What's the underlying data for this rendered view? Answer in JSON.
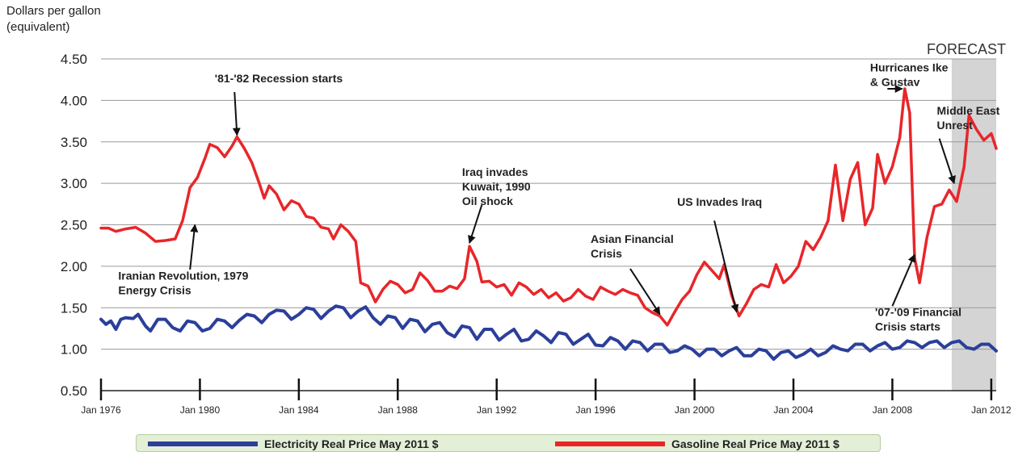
{
  "chart_data": {
    "type": "line",
    "ylabel": "Dollars per gallon\n(equivalent)",
    "ylim": [
      0.5,
      4.5
    ],
    "yticks": [
      "0.50",
      "1.00",
      "1.50",
      "2.00",
      "2.50",
      "3.00",
      "3.50",
      "4.00",
      "4.50"
    ],
    "xlim": [
      1976.0,
      2012.2
    ],
    "xticks": [
      "Jan 1976",
      "Jan 1980",
      "Jan 1984",
      "Jan 1988",
      "Jan 1992",
      "Jan 1996",
      "Jan 2000",
      "Jan 2004",
      "Jan 2008",
      "Jan 2012"
    ],
    "grid": "horizontal",
    "forecast": {
      "label": "FORECAST",
      "from": 2010.4,
      "to": 2012.2
    },
    "series": [
      {
        "name": "Electricity Real Price May 2011 $",
        "color": "#2b3f9a",
        "points": [
          [
            1976.0,
            1.36
          ],
          [
            1976.2,
            1.3
          ],
          [
            1976.4,
            1.34
          ],
          [
            1976.6,
            1.24
          ],
          [
            1976.8,
            1.36
          ],
          [
            1977.0,
            1.38
          ],
          [
            1977.3,
            1.37
          ],
          [
            1977.5,
            1.42
          ],
          [
            1977.8,
            1.28
          ],
          [
            1978.0,
            1.22
          ],
          [
            1978.3,
            1.36
          ],
          [
            1978.6,
            1.36
          ],
          [
            1978.9,
            1.26
          ],
          [
            1979.2,
            1.22
          ],
          [
            1979.5,
            1.34
          ],
          [
            1979.8,
            1.32
          ],
          [
            1980.1,
            1.22
          ],
          [
            1980.4,
            1.25
          ],
          [
            1980.7,
            1.36
          ],
          [
            1981.0,
            1.34
          ],
          [
            1981.3,
            1.26
          ],
          [
            1981.6,
            1.35
          ],
          [
            1981.9,
            1.42
          ],
          [
            1982.2,
            1.4
          ],
          [
            1982.5,
            1.32
          ],
          [
            1982.8,
            1.42
          ],
          [
            1983.1,
            1.47
          ],
          [
            1983.4,
            1.46
          ],
          [
            1983.7,
            1.36
          ],
          [
            1984.0,
            1.42
          ],
          [
            1984.3,
            1.5
          ],
          [
            1984.6,
            1.48
          ],
          [
            1984.9,
            1.37
          ],
          [
            1985.2,
            1.46
          ],
          [
            1985.5,
            1.52
          ],
          [
            1985.8,
            1.5
          ],
          [
            1986.1,
            1.38
          ],
          [
            1986.4,
            1.46
          ],
          [
            1986.7,
            1.51
          ],
          [
            1987.0,
            1.38
          ],
          [
            1987.3,
            1.3
          ],
          [
            1987.6,
            1.4
          ],
          [
            1987.9,
            1.38
          ],
          [
            1988.2,
            1.25
          ],
          [
            1988.5,
            1.36
          ],
          [
            1988.8,
            1.34
          ],
          [
            1989.1,
            1.21
          ],
          [
            1989.4,
            1.3
          ],
          [
            1989.7,
            1.32
          ],
          [
            1990.0,
            1.2
          ],
          [
            1990.3,
            1.15
          ],
          [
            1990.6,
            1.28
          ],
          [
            1990.9,
            1.26
          ],
          [
            1991.2,
            1.12
          ],
          [
            1991.5,
            1.24
          ],
          [
            1991.8,
            1.24
          ],
          [
            1992.1,
            1.11
          ],
          [
            1992.4,
            1.18
          ],
          [
            1992.7,
            1.24
          ],
          [
            1993.0,
            1.1
          ],
          [
            1993.3,
            1.12
          ],
          [
            1993.6,
            1.22
          ],
          [
            1993.9,
            1.16
          ],
          [
            1994.2,
            1.08
          ],
          [
            1994.5,
            1.2
          ],
          [
            1994.8,
            1.18
          ],
          [
            1995.1,
            1.06
          ],
          [
            1995.4,
            1.12
          ],
          [
            1995.7,
            1.18
          ],
          [
            1996.0,
            1.05
          ],
          [
            1996.3,
            1.04
          ],
          [
            1996.6,
            1.14
          ],
          [
            1996.9,
            1.1
          ],
          [
            1997.2,
            1.0
          ],
          [
            1997.5,
            1.1
          ],
          [
            1997.8,
            1.08
          ],
          [
            1998.1,
            0.98
          ],
          [
            1998.4,
            1.06
          ],
          [
            1998.7,
            1.06
          ],
          [
            1999.0,
            0.96
          ],
          [
            1999.3,
            0.98
          ],
          [
            1999.6,
            1.04
          ],
          [
            1999.9,
            1.0
          ],
          [
            2000.2,
            0.92
          ],
          [
            2000.5,
            1.0
          ],
          [
            2000.8,
            1.0
          ],
          [
            2001.1,
            0.92
          ],
          [
            2001.4,
            0.98
          ],
          [
            2001.7,
            1.02
          ],
          [
            2002.0,
            0.92
          ],
          [
            2002.3,
            0.92
          ],
          [
            2002.6,
            1.0
          ],
          [
            2002.9,
            0.98
          ],
          [
            2003.2,
            0.88
          ],
          [
            2003.5,
            0.96
          ],
          [
            2003.8,
            0.98
          ],
          [
            2004.1,
            0.9
          ],
          [
            2004.4,
            0.94
          ],
          [
            2004.7,
            1.0
          ],
          [
            2005.0,
            0.92
          ],
          [
            2005.3,
            0.96
          ],
          [
            2005.6,
            1.04
          ],
          [
            2005.9,
            1.0
          ],
          [
            2006.2,
            0.98
          ],
          [
            2006.5,
            1.06
          ],
          [
            2006.8,
            1.06
          ],
          [
            2007.1,
            0.98
          ],
          [
            2007.4,
            1.04
          ],
          [
            2007.7,
            1.08
          ],
          [
            2008.0,
            1.0
          ],
          [
            2008.3,
            1.02
          ],
          [
            2008.6,
            1.1
          ],
          [
            2008.9,
            1.08
          ],
          [
            2009.2,
            1.02
          ],
          [
            2009.5,
            1.08
          ],
          [
            2009.8,
            1.1
          ],
          [
            2010.1,
            1.02
          ],
          [
            2010.4,
            1.08
          ],
          [
            2010.7,
            1.1
          ],
          [
            2011.0,
            1.02
          ],
          [
            2011.3,
            1.0
          ],
          [
            2011.6,
            1.06
          ],
          [
            2011.9,
            1.06
          ],
          [
            2012.2,
            0.98
          ]
        ]
      },
      {
        "name": "Gasoline Real Price May 2011 $",
        "color": "#e8262a",
        "points": [
          [
            1976.0,
            2.46
          ],
          [
            1976.3,
            2.46
          ],
          [
            1976.6,
            2.42
          ],
          [
            1977.0,
            2.45
          ],
          [
            1977.4,
            2.47
          ],
          [
            1977.8,
            2.4
          ],
          [
            1978.2,
            2.3
          ],
          [
            1978.6,
            2.31
          ],
          [
            1979.0,
            2.33
          ],
          [
            1979.3,
            2.55
          ],
          [
            1979.6,
            2.95
          ],
          [
            1979.9,
            3.07
          ],
          [
            1980.2,
            3.3
          ],
          [
            1980.4,
            3.47
          ],
          [
            1980.7,
            3.43
          ],
          [
            1981.0,
            3.32
          ],
          [
            1981.3,
            3.45
          ],
          [
            1981.5,
            3.56
          ],
          [
            1981.8,
            3.42
          ],
          [
            1982.1,
            3.25
          ],
          [
            1982.4,
            3.0
          ],
          [
            1982.6,
            2.82
          ],
          [
            1982.8,
            2.97
          ],
          [
            1983.1,
            2.87
          ],
          [
            1983.4,
            2.68
          ],
          [
            1983.7,
            2.79
          ],
          [
            1984.0,
            2.75
          ],
          [
            1984.3,
            2.6
          ],
          [
            1984.6,
            2.58
          ],
          [
            1984.9,
            2.47
          ],
          [
            1985.2,
            2.45
          ],
          [
            1985.4,
            2.33
          ],
          [
            1985.7,
            2.5
          ],
          [
            1986.0,
            2.42
          ],
          [
            1986.3,
            2.3
          ],
          [
            1986.5,
            1.8
          ],
          [
            1986.8,
            1.76
          ],
          [
            1987.1,
            1.57
          ],
          [
            1987.4,
            1.72
          ],
          [
            1987.7,
            1.82
          ],
          [
            1988.0,
            1.78
          ],
          [
            1988.3,
            1.68
          ],
          [
            1988.6,
            1.72
          ],
          [
            1988.9,
            1.92
          ],
          [
            1989.2,
            1.83
          ],
          [
            1989.5,
            1.7
          ],
          [
            1989.8,
            1.7
          ],
          [
            1990.1,
            1.76
          ],
          [
            1990.4,
            1.73
          ],
          [
            1990.7,
            1.85
          ],
          [
            1990.9,
            2.24
          ],
          [
            1991.2,
            2.06
          ],
          [
            1991.4,
            1.81
          ],
          [
            1991.7,
            1.82
          ],
          [
            1992.0,
            1.75
          ],
          [
            1992.3,
            1.78
          ],
          [
            1992.6,
            1.65
          ],
          [
            1992.9,
            1.8
          ],
          [
            1993.2,
            1.75
          ],
          [
            1993.5,
            1.66
          ],
          [
            1993.8,
            1.72
          ],
          [
            1994.1,
            1.62
          ],
          [
            1994.4,
            1.68
          ],
          [
            1994.7,
            1.58
          ],
          [
            1995.0,
            1.62
          ],
          [
            1995.3,
            1.72
          ],
          [
            1995.6,
            1.64
          ],
          [
            1995.9,
            1.6
          ],
          [
            1996.2,
            1.75
          ],
          [
            1996.5,
            1.7
          ],
          [
            1996.8,
            1.66
          ],
          [
            1997.1,
            1.72
          ],
          [
            1997.4,
            1.68
          ],
          [
            1997.7,
            1.65
          ],
          [
            1998.0,
            1.5
          ],
          [
            1998.3,
            1.44
          ],
          [
            1998.6,
            1.4
          ],
          [
            1998.9,
            1.29
          ],
          [
            1999.2,
            1.45
          ],
          [
            1999.5,
            1.6
          ],
          [
            1999.8,
            1.7
          ],
          [
            2000.1,
            1.9
          ],
          [
            2000.4,
            2.05
          ],
          [
            2000.7,
            1.95
          ],
          [
            2001.0,
            1.85
          ],
          [
            2001.2,
            2.02
          ],
          [
            2001.5,
            1.65
          ],
          [
            2001.8,
            1.4
          ],
          [
            2002.1,
            1.55
          ],
          [
            2002.4,
            1.72
          ],
          [
            2002.7,
            1.78
          ],
          [
            2003.0,
            1.75
          ],
          [
            2003.3,
            2.02
          ],
          [
            2003.6,
            1.8
          ],
          [
            2003.9,
            1.88
          ],
          [
            2004.2,
            2.0
          ],
          [
            2004.5,
            2.3
          ],
          [
            2004.8,
            2.2
          ],
          [
            2005.1,
            2.35
          ],
          [
            2005.4,
            2.55
          ],
          [
            2005.7,
            3.22
          ],
          [
            2006.0,
            2.55
          ],
          [
            2006.3,
            3.05
          ],
          [
            2006.6,
            3.25
          ],
          [
            2006.9,
            2.5
          ],
          [
            2007.2,
            2.7
          ],
          [
            2007.4,
            3.35
          ],
          [
            2007.7,
            3.0
          ],
          [
            2008.0,
            3.2
          ],
          [
            2008.3,
            3.55
          ],
          [
            2008.5,
            4.14
          ],
          [
            2008.7,
            3.85
          ],
          [
            2008.9,
            2.1
          ],
          [
            2009.1,
            1.8
          ],
          [
            2009.4,
            2.35
          ],
          [
            2009.7,
            2.72
          ],
          [
            2010.0,
            2.75
          ],
          [
            2010.3,
            2.92
          ],
          [
            2010.6,
            2.78
          ],
          [
            2010.9,
            3.2
          ],
          [
            2011.1,
            3.82
          ],
          [
            2011.4,
            3.65
          ],
          [
            2011.7,
            3.52
          ],
          [
            2012.0,
            3.6
          ],
          [
            2012.2,
            3.42
          ]
        ]
      }
    ],
    "annotations": [
      {
        "text": "'81-'82 Recession starts",
        "tx": 1980.6,
        "ty": 4.22,
        "ax": 1981.4,
        "ay": 4.1,
        "hx": 1981.5,
        "hy": 3.58
      },
      {
        "text": "Iranian Revolution, 1979\nEnergy Crisis",
        "tx": 1976.7,
        "ty": 1.84,
        "ax": 1979.6,
        "ay": 1.96,
        "hx": 1979.8,
        "hy": 2.5
      },
      {
        "text": "Iraq invades\nKuwait, 1990\nOil shock",
        "tx": 1990.6,
        "ty": 3.09,
        "ax": 1991.4,
        "ay": 2.74,
        "hx": 1990.9,
        "hy": 2.28
      },
      {
        "text": "Asian Financial\nCrisis",
        "tx": 1995.8,
        "ty": 2.28,
        "ax": 1997.4,
        "ay": 1.97,
        "hx": 1998.6,
        "hy": 1.42
      },
      {
        "text": "US Invades Iraq",
        "tx": 1999.3,
        "ty": 2.73,
        "ax": 2000.8,
        "ay": 2.55,
        "hx": 2001.7,
        "hy": 1.45
      },
      {
        "text": "'07-'09 Financial\nCrisis starts",
        "tx": 2007.3,
        "ty": 1.4,
        "ax": 2008.0,
        "ay": 1.52,
        "hx": 2008.9,
        "hy": 2.14
      },
      {
        "text": "Hurricanes Ike\n& Gustav",
        "tx": 2007.1,
        "ty": 4.35,
        "ax": 2007.8,
        "ay": 4.14,
        "hx": 2008.4,
        "hy": 4.14
      },
      {
        "text": "Middle East\nUnrest",
        "tx": 2009.8,
        "ty": 3.83,
        "ax": 2009.9,
        "ay": 3.54,
        "hx": 2010.5,
        "hy": 3.0
      }
    ]
  },
  "legend": {
    "electricity_label": "Electricity Real Price May 2011 $",
    "gasoline_label": "Gasoline Real Price May 2011 $"
  }
}
